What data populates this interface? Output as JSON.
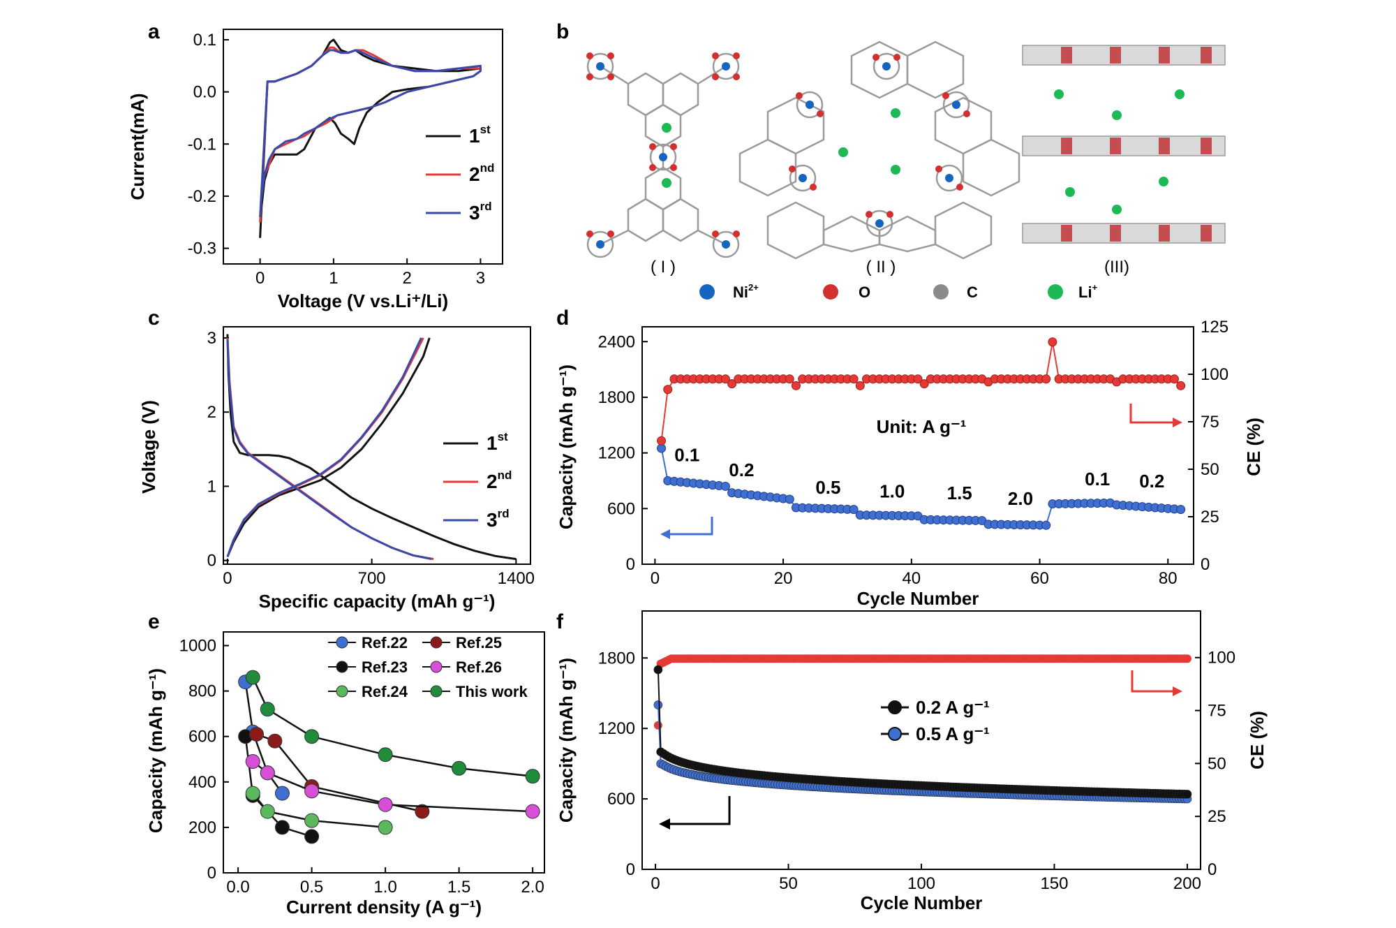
{
  "figure": {
    "legend_atoms": [
      {
        "label": "Ni",
        "sup": "2+",
        "color": "#1565c0"
      },
      {
        "label": "O",
        "sup": "",
        "color": "#d32f2f"
      },
      {
        "label": "C",
        "sup": "",
        "color": "#8a8a8a"
      },
      {
        "label": "Li",
        "sup": "+",
        "color": "#1db954"
      }
    ],
    "structure_labels": [
      "( I )",
      "( II )",
      "(III)"
    ]
  },
  "chart_data": [
    {
      "panel": "a",
      "type": "line",
      "xlabel": "Voltage (V vs.Li⁺/Li)",
      "ylabel": "Current(mA)",
      "xlim": [
        -0.5,
        3.3
      ],
      "ylim": [
        -0.33,
        0.12
      ],
      "xticks": [
        "0",
        "1",
        "2",
        "3"
      ],
      "yticks": [
        "0.1",
        "0.0",
        "-0.1",
        "-0.2",
        "-0.3"
      ],
      "grid": false,
      "legend_position": "bottom-right",
      "series": [
        {
          "name": "1",
          "sup": "st",
          "color": "#111111",
          "x": [
            0,
            0.02,
            0.06,
            0.12,
            0.2,
            0.35,
            0.5,
            0.6,
            0.75,
            0.85,
            0.95,
            1.02,
            1.1,
            1.2,
            1.28,
            1.35,
            1.45,
            1.6,
            1.8,
            2.0,
            2.0,
            2.3,
            2.6,
            2.9,
            3.0,
            3.0,
            2.7,
            2.4,
            2.1,
            1.8,
            1.55,
            1.4,
            1.3,
            1.2,
            1.1,
            1.0,
            0.95,
            0.85,
            0.7,
            0.5,
            0.3,
            0.2,
            0.1,
            0
          ],
          "y": [
            -0.28,
            -0.22,
            -0.17,
            -0.14,
            -0.12,
            -0.12,
            -0.12,
            -0.11,
            -0.07,
            -0.06,
            -0.05,
            -0.06,
            -0.08,
            -0.09,
            -0.1,
            -0.07,
            -0.04,
            -0.02,
            0.0,
            0.005,
            0.005,
            0.01,
            0.02,
            0.03,
            0.04,
            0.045,
            0.04,
            0.04,
            0.045,
            0.05,
            0.06,
            0.07,
            0.08,
            0.075,
            0.08,
            0.1,
            0.095,
            0.07,
            0.05,
            0.035,
            0.025,
            0.02,
            0.02,
            -0.28
          ]
        },
        {
          "name": "2",
          "sup": "nd",
          "color": "#e53935",
          "x": [
            0,
            0.02,
            0.06,
            0.12,
            0.2,
            0.35,
            0.5,
            0.6,
            0.75,
            0.9,
            1.05,
            1.2,
            1.35,
            1.5,
            1.7,
            2.0,
            2.3,
            2.6,
            2.9,
            3.0,
            3.0,
            2.7,
            2.4,
            2.1,
            1.8,
            1.55,
            1.4,
            1.3,
            1.2,
            1.1,
            1.0,
            0.95,
            0.85,
            0.7,
            0.5,
            0.3,
            0.2,
            0.1,
            0
          ],
          "y": [
            -0.25,
            -0.2,
            -0.16,
            -0.14,
            -0.11,
            -0.1,
            -0.09,
            -0.085,
            -0.07,
            -0.06,
            -0.045,
            -0.04,
            -0.035,
            -0.03,
            -0.02,
            0.0,
            0.01,
            0.02,
            0.03,
            0.04,
            0.045,
            0.045,
            0.04,
            0.04,
            0.05,
            0.07,
            0.08,
            0.08,
            0.075,
            0.075,
            0.085,
            0.085,
            0.07,
            0.05,
            0.035,
            0.025,
            0.02,
            0.02,
            -0.25
          ]
        },
        {
          "name": "3",
          "sup": "rd",
          "color": "#3949ab",
          "x": [
            0,
            0.02,
            0.06,
            0.12,
            0.2,
            0.35,
            0.5,
            0.6,
            0.75,
            0.9,
            1.05,
            1.2,
            1.35,
            1.5,
            1.7,
            2.0,
            2.3,
            2.6,
            2.9,
            3.0,
            3.0,
            2.7,
            2.4,
            2.1,
            1.8,
            1.55,
            1.4,
            1.3,
            1.2,
            1.1,
            1.0,
            0.95,
            0.85,
            0.7,
            0.5,
            0.3,
            0.2,
            0.1,
            0
          ],
          "y": [
            -0.24,
            -0.2,
            -0.16,
            -0.13,
            -0.11,
            -0.095,
            -0.09,
            -0.08,
            -0.07,
            -0.055,
            -0.045,
            -0.04,
            -0.035,
            -0.03,
            -0.02,
            0.0,
            0.01,
            0.02,
            0.03,
            0.04,
            0.05,
            0.045,
            0.04,
            0.04,
            0.05,
            0.065,
            0.075,
            0.08,
            0.075,
            0.075,
            0.08,
            0.08,
            0.07,
            0.05,
            0.035,
            0.025,
            0.02,
            0.02,
            -0.24
          ]
        }
      ]
    },
    {
      "panel": "c",
      "type": "line",
      "xlabel": "Specific capacity (mAh g⁻¹)",
      "ylabel": "Voltage (V)",
      "xlim": [
        -20,
        1470
      ],
      "ylim": [
        -0.05,
        3.15
      ],
      "xticks": [
        "0",
        "700",
        "1400"
      ],
      "yticks": [
        "3",
        "2",
        "1",
        "0"
      ],
      "grid": false,
      "legend_position": "right",
      "series": [
        {
          "name": "1",
          "sup": "st",
          "color": "#111111",
          "discharge": {
            "x": [
              0,
              5,
              15,
              30,
              60,
              100,
              150,
              200,
              250,
              300,
              400,
              500,
              600,
              700,
              800,
              900,
              1000,
              1100,
              1200,
              1300,
              1400
            ],
            "y": [
              3.05,
              2.5,
              2.0,
              1.6,
              1.45,
              1.42,
              1.42,
              1.42,
              1.41,
              1.38,
              1.25,
              1.05,
              0.85,
              0.7,
              0.57,
              0.45,
              0.33,
              0.22,
              0.13,
              0.06,
              0.02
            ]
          },
          "charge": {
            "x": [
              0,
              30,
              80,
              150,
              250,
              350,
              450,
              550,
              650,
              750,
              850,
              950,
              980
            ],
            "y": [
              0.05,
              0.25,
              0.5,
              0.72,
              0.88,
              0.98,
              1.08,
              1.25,
              1.5,
              1.85,
              2.25,
              2.75,
              3.0
            ]
          }
        },
        {
          "name": "2",
          "sup": "nd",
          "color": "#e53935",
          "discharge": {
            "x": [
              0,
              10,
              30,
              60,
              100,
              200,
              300,
              400,
              500,
              600,
              700,
              800,
              900,
              1000
            ],
            "y": [
              3.0,
              2.4,
              1.8,
              1.6,
              1.45,
              1.25,
              1.05,
              0.85,
              0.65,
              0.45,
              0.3,
              0.17,
              0.07,
              0.02
            ]
          },
          "charge": {
            "x": [
              0,
              30,
              80,
              150,
              250,
              350,
              450,
              550,
              650,
              750,
              850,
              950
            ],
            "y": [
              0.05,
              0.28,
              0.55,
              0.75,
              0.9,
              1.02,
              1.15,
              1.35,
              1.65,
              2.0,
              2.45,
              3.0
            ]
          }
        },
        {
          "name": "3",
          "sup": "rd",
          "color": "#3949ab",
          "discharge": {
            "x": [
              0,
              10,
              30,
              60,
              100,
              200,
              300,
              400,
              500,
              600,
              700,
              800,
              900,
              990
            ],
            "y": [
              2.98,
              2.35,
              1.78,
              1.58,
              1.44,
              1.24,
              1.04,
              0.84,
              0.64,
              0.45,
              0.3,
              0.17,
              0.07,
              0.02
            ]
          },
          "charge": {
            "x": [
              0,
              30,
              80,
              150,
              250,
              350,
              450,
              550,
              650,
              750,
              850,
              940
            ],
            "y": [
              0.05,
              0.28,
              0.55,
              0.76,
              0.91,
              1.03,
              1.16,
              1.36,
              1.66,
              2.02,
              2.47,
              3.0
            ]
          }
        }
      ]
    },
    {
      "panel": "d",
      "type": "scatter",
      "xlabel": "Cycle Number",
      "ylabel": "Capacity (mAh g⁻¹)",
      "y2label": "CE (%)",
      "xlim": [
        -2,
        84
      ],
      "ylim": [
        0,
        2560
      ],
      "y2lim": [
        0,
        125
      ],
      "xticks": [
        "0",
        "20",
        "40",
        "60",
        "80"
      ],
      "yticks": [
        "0",
        "600",
        "1200",
        "1800",
        "2400"
      ],
      "y2ticks": [
        "0",
        "25",
        "50",
        "75",
        "100",
        "125"
      ],
      "annotation": "Unit: A g⁻¹",
      "rate_labels": [
        "0.1",
        "0.2",
        "0.5",
        "1.0",
        "1.5",
        "2.0",
        "0.1",
        "0.2"
      ],
      "rate_label_x": [
        5,
        13.5,
        27,
        37,
        47.5,
        57,
        69,
        77.5
      ],
      "rate_label_y": [
        1110,
        950,
        760,
        720,
        700,
        640,
        850,
        830
      ],
      "segments": [
        {
          "cycles": [
            1,
            1
          ],
          "capacity": [
            1250,
            1250
          ]
        },
        {
          "cycles": [
            2,
            11
          ],
          "capacity": [
            900,
            840
          ]
        },
        {
          "cycles": [
            12,
            21
          ],
          "capacity": [
            770,
            700
          ]
        },
        {
          "cycles": [
            22,
            31
          ],
          "capacity": [
            610,
            590
          ]
        },
        {
          "cycles": [
            32,
            41
          ],
          "capacity": [
            530,
            520
          ]
        },
        {
          "cycles": [
            42,
            51
          ],
          "capacity": [
            480,
            470
          ]
        },
        {
          "cycles": [
            52,
            61
          ],
          "capacity": [
            430,
            420
          ]
        },
        {
          "cycles": [
            62,
            71
          ],
          "capacity": [
            650,
            660
          ]
        },
        {
          "cycles": [
            72,
            82
          ],
          "capacity": [
            640,
            590
          ]
        }
      ],
      "ce": {
        "first": [
          1,
          65
        ],
        "plateau": 97.5,
        "dips": [
          [
            2,
            92
          ],
          [
            12,
            95
          ],
          [
            22,
            94
          ],
          [
            32,
            94
          ],
          [
            42,
            95
          ],
          [
            52,
            96
          ],
          [
            62,
            117
          ],
          [
            72,
            96
          ],
          [
            82,
            94
          ]
        ]
      },
      "series_colors": {
        "capacity": "#3f6fd0",
        "ce": "#e53935"
      }
    },
    {
      "panel": "e",
      "type": "line",
      "xlabel": "Current density (A g⁻¹)",
      "ylabel": "Capacity (mAh g⁻¹)",
      "xlim": [
        -0.1,
        2.08
      ],
      "ylim": [
        0,
        1060
      ],
      "xticks": [
        "0.0",
        "0.5",
        "1.0",
        "1.5",
        "2.0"
      ],
      "yticks": [
        "0",
        "200",
        "400",
        "600",
        "800",
        "1000"
      ],
      "grid": false,
      "legend_position": "top-right",
      "series": [
        {
          "name": "Ref.22",
          "color": "#3f6fd0",
          "x": [
            0.05,
            0.1,
            0.2,
            0.3
          ],
          "y": [
            840,
            620,
            440,
            350
          ]
        },
        {
          "name": "Ref.23",
          "color": "#111111",
          "x": [
            0.05,
            0.1,
            0.3,
            0.5
          ],
          "y": [
            600,
            340,
            200,
            160
          ]
        },
        {
          "name": "Ref.24",
          "color": "#5cb85c",
          "x": [
            0.1,
            0.2,
            0.5,
            1.0
          ],
          "y": [
            350,
            270,
            230,
            200
          ]
        },
        {
          "name": "Ref.25",
          "color": "#8b1a1a",
          "x": [
            0.125,
            0.25,
            0.5,
            1.25
          ],
          "y": [
            610,
            580,
            380,
            270
          ]
        },
        {
          "name": "Ref.26",
          "color": "#d64fd6",
          "x": [
            0.1,
            0.2,
            0.5,
            1.0,
            2.0
          ],
          "y": [
            490,
            440,
            360,
            300,
            270
          ]
        },
        {
          "name": "This work",
          "color": "#1e8c3a",
          "x": [
            0.1,
            0.2,
            0.5,
            1.0,
            1.5,
            2.0
          ],
          "y": [
            860,
            720,
            600,
            520,
            460,
            425
          ]
        }
      ]
    },
    {
      "panel": "f",
      "type": "scatter",
      "xlabel": "Cycle Number",
      "ylabel": "Capacity (mAh g⁻¹)",
      "y2label": "CE (%)",
      "xlim": [
        -5,
        205
      ],
      "ylim": [
        0,
        2200
      ],
      "y2lim": [
        0,
        122
      ],
      "xticks": [
        "0",
        "50",
        "100",
        "150",
        "200"
      ],
      "yticks": [
        "0",
        "600",
        "1200",
        "1800"
      ],
      "y2ticks": [
        "0",
        "25",
        "50",
        "75",
        "100"
      ],
      "legend_position": "middle-right",
      "series": [
        {
          "name": "0.2 A g⁻¹",
          "color": "#111111",
          "first": 1700,
          "start": 1000,
          "end": 640
        },
        {
          "name": "0.5 A g⁻¹",
          "color": "#3f6fd0",
          "first": 1400,
          "start": 900,
          "end": 600
        }
      ],
      "ce": {
        "first": [
          1,
          68
        ],
        "plateau": 99.5,
        "series_color": "#e53935"
      }
    }
  ]
}
